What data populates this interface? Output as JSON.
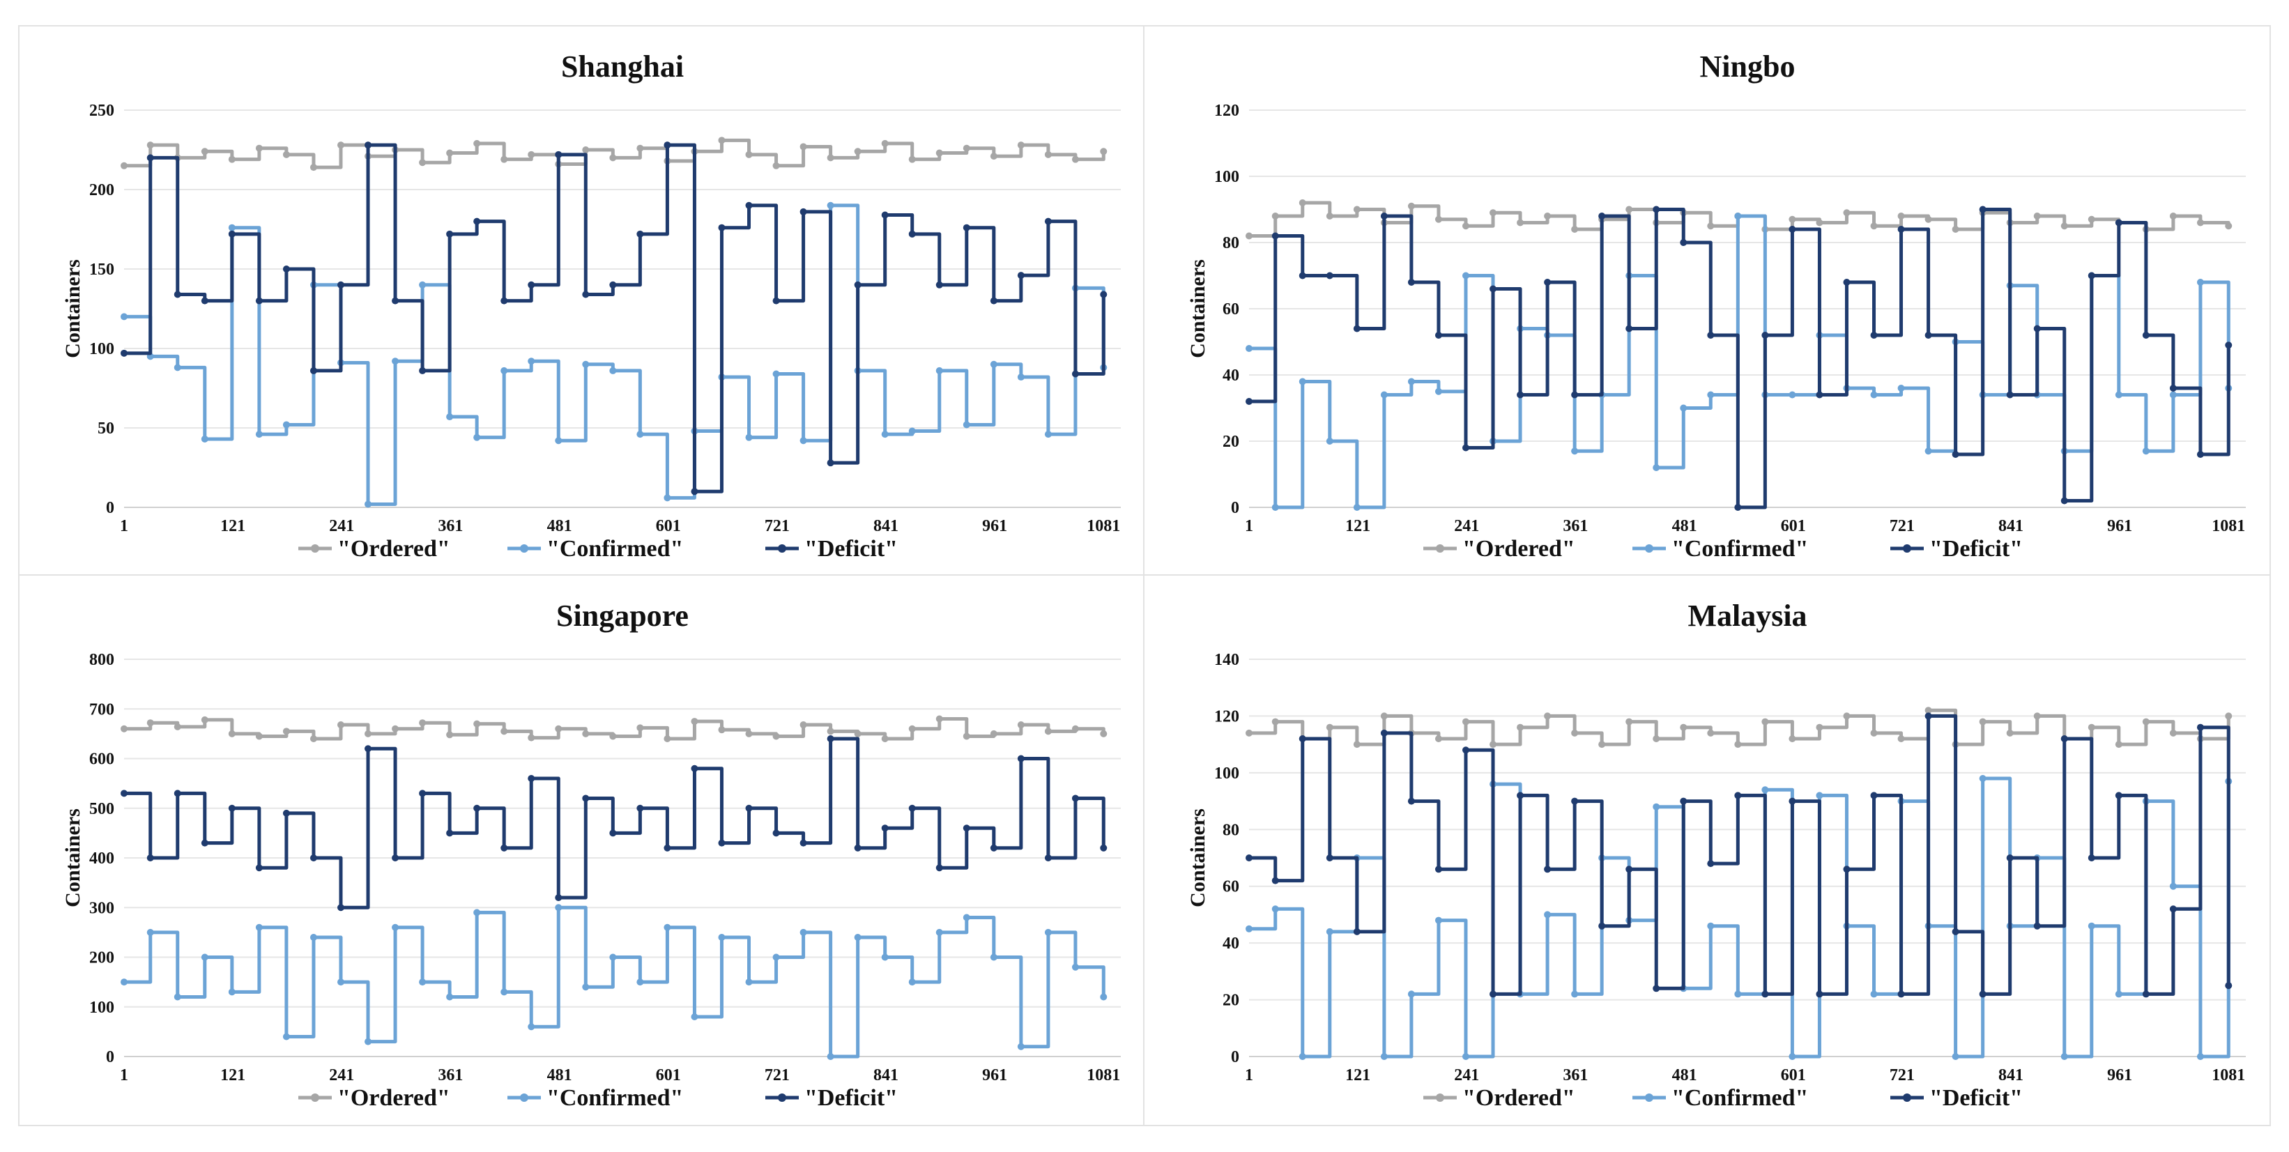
{
  "colors": {
    "ordered": "#a6a6a6",
    "confirmed": "#6ba3d6",
    "deficit": "#1f3b6e"
  },
  "legend": [
    "\"Ordered\"",
    "\"Confirmed\"",
    "\"Deficit\""
  ],
  "chart_data": [
    {
      "type": "line",
      "title": "Shanghai",
      "xlabel": "",
      "ylabel": "Containers",
      "ylim": [
        0,
        250
      ],
      "yticks": [
        0,
        50,
        100,
        150,
        200,
        250
      ],
      "xticks": [
        1,
        121,
        241,
        361,
        481,
        601,
        721,
        841,
        961,
        1081
      ],
      "xlim": [
        1,
        1100
      ],
      "grid": true,
      "legend_position": "bottom",
      "series": [
        {
          "name": "\"Ordered\"",
          "x": [
            1,
            30,
            60,
            90,
            120,
            150,
            180,
            210,
            240,
            270,
            300,
            330,
            360,
            390,
            420,
            450,
            480,
            510,
            540,
            570,
            600,
            630,
            660,
            690,
            720,
            750,
            780,
            810,
            840,
            870,
            900,
            930,
            960,
            990,
            1020,
            1050,
            1081
          ],
          "values": [
            215,
            228,
            220,
            224,
            219,
            226,
            222,
            214,
            228,
            221,
            225,
            217,
            223,
            229,
            219,
            222,
            216,
            225,
            220,
            226,
            218,
            224,
            231,
            222,
            215,
            227,
            220,
            224,
            229,
            219,
            223,
            226,
            221,
            228,
            222,
            219,
            224
          ]
        },
        {
          "name": "\"Confirmed\"",
          "x": [
            1,
            30,
            60,
            90,
            120,
            150,
            180,
            210,
            240,
            270,
            300,
            330,
            360,
            390,
            420,
            450,
            480,
            510,
            540,
            570,
            600,
            630,
            660,
            690,
            720,
            750,
            780,
            810,
            840,
            870,
            900,
            930,
            960,
            990,
            1020,
            1050,
            1081
          ],
          "values": [
            120,
            95,
            88,
            43,
            176,
            46,
            52,
            140,
            91,
            2,
            92,
            140,
            57,
            44,
            86,
            92,
            42,
            90,
            86,
            46,
            6,
            48,
            82,
            44,
            84,
            42,
            190,
            86,
            46,
            48,
            86,
            52,
            90,
            82,
            46,
            138,
            88
          ]
        },
        {
          "name": "\"Deficit\"",
          "x": [
            1,
            30,
            60,
            90,
            120,
            150,
            180,
            210,
            240,
            270,
            300,
            330,
            360,
            390,
            420,
            450,
            480,
            510,
            540,
            570,
            600,
            630,
            660,
            690,
            720,
            750,
            780,
            810,
            840,
            870,
            900,
            930,
            960,
            990,
            1020,
            1050,
            1081
          ],
          "values": [
            97,
            220,
            134,
            130,
            172,
            130,
            150,
            86,
            140,
            228,
            130,
            86,
            172,
            180,
            130,
            140,
            222,
            134,
            140,
            172,
            228,
            10,
            176,
            190,
            130,
            186,
            28,
            140,
            184,
            172,
            140,
            176,
            130,
            146,
            180,
            84,
            134
          ]
        }
      ]
    },
    {
      "type": "line",
      "title": "Ningbo",
      "xlabel": "",
      "ylabel": "Containers",
      "ylim": [
        0,
        120
      ],
      "yticks": [
        0,
        20,
        40,
        60,
        80,
        100,
        120
      ],
      "xticks": [
        1,
        121,
        241,
        361,
        481,
        601,
        721,
        841,
        961,
        1081
      ],
      "xlim": [
        1,
        1100
      ],
      "grid": true,
      "legend_position": "bottom",
      "series": [
        {
          "name": "\"Ordered\"",
          "x": [
            1,
            30,
            60,
            90,
            120,
            150,
            180,
            210,
            240,
            270,
            300,
            330,
            360,
            390,
            420,
            450,
            480,
            510,
            540,
            570,
            600,
            630,
            660,
            690,
            720,
            750,
            780,
            810,
            840,
            870,
            900,
            930,
            960,
            990,
            1020,
            1050,
            1081
          ],
          "values": [
            82,
            88,
            92,
            88,
            90,
            86,
            91,
            87,
            85,
            89,
            86,
            88,
            84,
            87,
            90,
            86,
            89,
            85,
            88,
            84,
            87,
            86,
            89,
            85,
            88,
            87,
            84,
            89,
            86,
            88,
            85,
            87,
            86,
            84,
            88,
            86,
            85
          ]
        },
        {
          "name": "\"Confirmed\"",
          "x": [
            1,
            30,
            60,
            90,
            120,
            150,
            180,
            210,
            240,
            270,
            300,
            330,
            360,
            390,
            420,
            450,
            480,
            510,
            540,
            570,
            600,
            630,
            660,
            690,
            720,
            750,
            780,
            810,
            840,
            870,
            900,
            930,
            960,
            990,
            1020,
            1050,
            1081
          ],
          "values": [
            48,
            0,
            38,
            20,
            0,
            34,
            38,
            35,
            70,
            20,
            54,
            52,
            17,
            34,
            70,
            12,
            30,
            34,
            88,
            34,
            34,
            52,
            36,
            34,
            36,
            17,
            50,
            34,
            67,
            34,
            17,
            70,
            34,
            17,
            34,
            68,
            36
          ]
        },
        {
          "name": "\"Deficit\"",
          "x": [
            1,
            30,
            60,
            90,
            120,
            150,
            180,
            210,
            240,
            270,
            300,
            330,
            360,
            390,
            420,
            450,
            480,
            510,
            540,
            570,
            600,
            630,
            660,
            690,
            720,
            750,
            780,
            810,
            840,
            870,
            900,
            930,
            960,
            990,
            1020,
            1050,
            1081
          ],
          "values": [
            32,
            82,
            70,
            70,
            54,
            88,
            68,
            52,
            18,
            66,
            34,
            68,
            34,
            88,
            54,
            90,
            80,
            52,
            0,
            52,
            84,
            34,
            68,
            52,
            84,
            52,
            16,
            90,
            34,
            54,
            2,
            70,
            86,
            52,
            36,
            16,
            49
          ]
        }
      ]
    },
    {
      "type": "line",
      "title": "Singapore",
      "xlabel": "",
      "ylabel": "Containers",
      "ylim": [
        0,
        800
      ],
      "yticks": [
        0,
        100,
        200,
        300,
        400,
        500,
        600,
        700,
        800
      ],
      "xticks": [
        1,
        121,
        241,
        361,
        481,
        601,
        721,
        841,
        961,
        1081
      ],
      "xlim": [
        1,
        1100
      ],
      "grid": true,
      "legend_position": "bottom",
      "series": [
        {
          "name": "\"Ordered\"",
          "x": [
            1,
            30,
            60,
            90,
            120,
            150,
            180,
            210,
            240,
            270,
            300,
            330,
            360,
            390,
            420,
            450,
            480,
            510,
            540,
            570,
            600,
            630,
            660,
            690,
            720,
            750,
            780,
            810,
            840,
            870,
            900,
            930,
            960,
            990,
            1020,
            1050,
            1081
          ],
          "values": [
            660,
            672,
            664,
            678,
            650,
            645,
            655,
            640,
            668,
            650,
            660,
            672,
            648,
            670,
            655,
            642,
            660,
            650,
            645,
            662,
            640,
            675,
            658,
            650,
            645,
            668,
            655,
            650,
            640,
            660,
            680,
            645,
            650,
            668,
            655,
            660,
            650
          ]
        },
        {
          "name": "\"Confirmed\"",
          "x": [
            1,
            30,
            60,
            90,
            120,
            150,
            180,
            210,
            240,
            270,
            300,
            330,
            360,
            390,
            420,
            450,
            480,
            510,
            540,
            570,
            600,
            630,
            660,
            690,
            720,
            750,
            780,
            810,
            840,
            870,
            900,
            930,
            960,
            990,
            1020,
            1050,
            1081
          ],
          "values": [
            150,
            250,
            120,
            200,
            130,
            260,
            40,
            240,
            150,
            30,
            260,
            150,
            120,
            290,
            130,
            60,
            300,
            140,
            200,
            150,
            260,
            80,
            240,
            150,
            200,
            250,
            0,
            240,
            200,
            150,
            250,
            280,
            200,
            20,
            250,
            180,
            120
          ]
        },
        {
          "name": "\"Deficit\"",
          "x": [
            1,
            30,
            60,
            90,
            120,
            150,
            180,
            210,
            240,
            270,
            300,
            330,
            360,
            390,
            420,
            450,
            480,
            510,
            540,
            570,
            600,
            630,
            660,
            690,
            720,
            750,
            780,
            810,
            840,
            870,
            900,
            930,
            960,
            990,
            1020,
            1050,
            1081
          ],
          "values": [
            530,
            400,
            530,
            430,
            500,
            380,
            490,
            400,
            300,
            620,
            400,
            530,
            450,
            500,
            420,
            560,
            320,
            520,
            450,
            500,
            420,
            580,
            430,
            500,
            450,
            430,
            640,
            420,
            460,
            500,
            380,
            460,
            420,
            600,
            400,
            520,
            420
          ]
        }
      ]
    },
    {
      "type": "line",
      "title": "Malaysia",
      "xlabel": "",
      "ylabel": "Containers",
      "ylim": [
        0,
        140
      ],
      "yticks": [
        0,
        20,
        40,
        60,
        80,
        100,
        120,
        140
      ],
      "xticks": [
        1,
        121,
        241,
        361,
        481,
        601,
        721,
        841,
        961,
        1081
      ],
      "xlim": [
        1,
        1100
      ],
      "grid": true,
      "legend_position": "bottom",
      "series": [
        {
          "name": "\"Ordered\"",
          "x": [
            1,
            30,
            60,
            90,
            120,
            150,
            180,
            210,
            240,
            270,
            300,
            330,
            360,
            390,
            420,
            450,
            480,
            510,
            540,
            570,
            600,
            630,
            660,
            690,
            720,
            750,
            780,
            810,
            840,
            870,
            900,
            930,
            960,
            990,
            1020,
            1050,
            1081
          ],
          "values": [
            114,
            118,
            112,
            116,
            110,
            120,
            114,
            112,
            118,
            110,
            116,
            120,
            114,
            110,
            118,
            112,
            116,
            114,
            110,
            118,
            112,
            116,
            120,
            114,
            112,
            122,
            110,
            118,
            114,
            120,
            112,
            116,
            110,
            118,
            114,
            112,
            120
          ]
        },
        {
          "name": "\"Confirmed\"",
          "x": [
            1,
            30,
            60,
            90,
            120,
            150,
            180,
            210,
            240,
            270,
            300,
            330,
            360,
            390,
            420,
            450,
            480,
            510,
            540,
            570,
            600,
            630,
            660,
            690,
            720,
            750,
            780,
            810,
            840,
            870,
            900,
            930,
            960,
            990,
            1020,
            1050,
            1081
          ],
          "values": [
            45,
            52,
            0,
            44,
            70,
            0,
            22,
            48,
            0,
            96,
            22,
            50,
            22,
            70,
            48,
            88,
            24,
            46,
            22,
            94,
            0,
            92,
            46,
            22,
            90,
            46,
            0,
            98,
            46,
            70,
            0,
            46,
            22,
            90,
            60,
            0,
            97
          ]
        },
        {
          "name": "\"Deficit\"",
          "x": [
            1,
            30,
            60,
            90,
            120,
            150,
            180,
            210,
            240,
            270,
            300,
            330,
            360,
            390,
            420,
            450,
            480,
            510,
            540,
            570,
            600,
            630,
            660,
            690,
            720,
            750,
            780,
            810,
            840,
            870,
            900,
            930,
            960,
            990,
            1020,
            1050,
            1081
          ],
          "values": [
            70,
            62,
            112,
            70,
            44,
            114,
            90,
            66,
            108,
            22,
            92,
            66,
            90,
            46,
            66,
            24,
            90,
            68,
            92,
            22,
            90,
            22,
            66,
            92,
            22,
            120,
            44,
            22,
            70,
            46,
            112,
            70,
            92,
            22,
            52,
            116,
            25
          ]
        }
      ]
    }
  ]
}
